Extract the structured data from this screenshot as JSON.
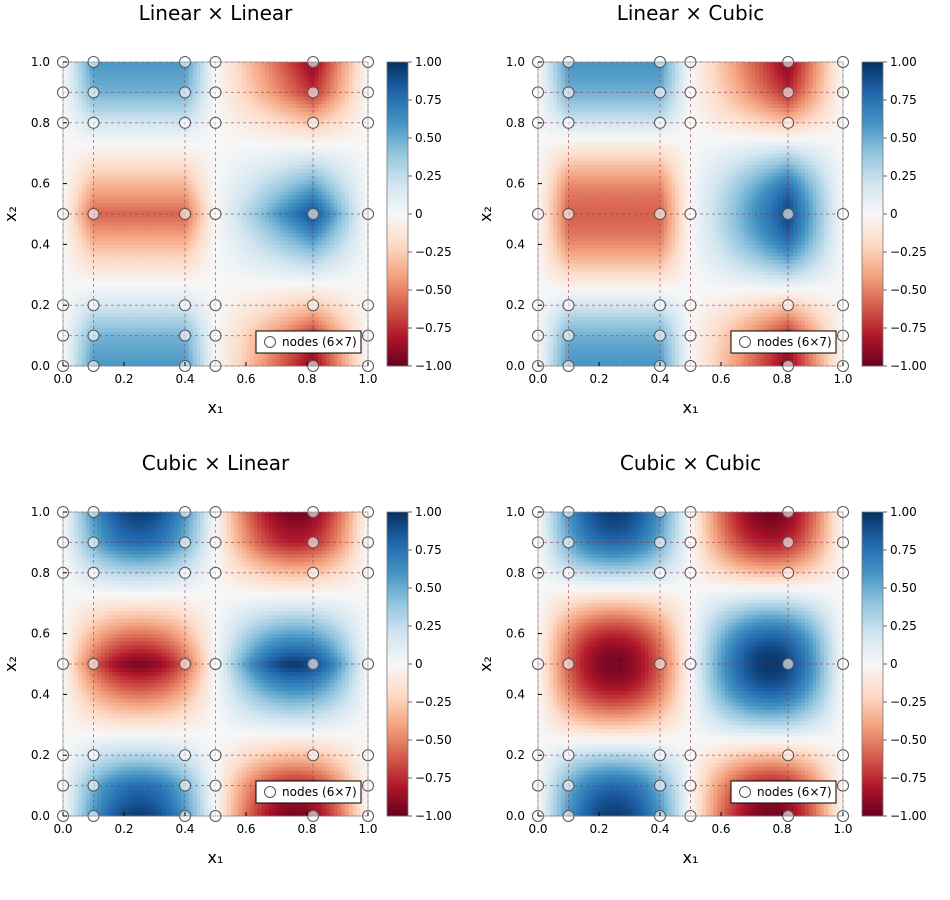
{
  "chart_data": [
    {
      "type": "heatmap",
      "title": "Linear × Linear",
      "method_x1": "linear",
      "method_x2": "linear",
      "xlabel": "x₁",
      "ylabel": "x₂"
    },
    {
      "type": "heatmap",
      "title": "Linear × Cubic",
      "method_x1": "linear",
      "method_x2": "cubic",
      "xlabel": "x₁",
      "ylabel": "x₂"
    },
    {
      "type": "heatmap",
      "title": "Cubic × Linear",
      "method_x1": "cubic",
      "method_x2": "linear",
      "xlabel": "x₁",
      "ylabel": "x₂"
    },
    {
      "type": "heatmap",
      "title": "Cubic × Cubic",
      "method_x1": "cubic",
      "method_x2": "cubic",
      "xlabel": "x₁",
      "ylabel": "x₂"
    }
  ],
  "shared": {
    "xlim": [
      0,
      1
    ],
    "ylim": [
      0,
      1
    ],
    "xticks": [
      "0.0",
      "0.2",
      "0.4",
      "0.6",
      "0.8",
      "1.0"
    ],
    "yticks": [
      "0.0",
      "0.2",
      "0.4",
      "0.6",
      "0.8",
      "1.0"
    ],
    "colorbar": {
      "range": [
        -1,
        1
      ],
      "colormap": "RdBu",
      "ticks": [
        "1.00",
        "0.75",
        "0.50",
        "0.25",
        "0",
        "−0.25",
        "−0.50",
        "−0.75",
        "−1.00"
      ]
    },
    "legend": {
      "label": "nodes (6×7)",
      "position": "bottom-right"
    },
    "nodes_x1": [
      0,
      0.1,
      0.4,
      0.5,
      0.82,
      1.0
    ],
    "nodes_x2": [
      0,
      0.1,
      0.2,
      0.5,
      0.8,
      0.9,
      1.0
    ],
    "node_values": [
      [
        0,
        0,
        0,
        0,
        0,
        0,
        0
      ],
      [
        0.588,
        0.476,
        0.182,
        -0.588,
        0.182,
        0.476,
        0.588
      ],
      [
        0.588,
        0.476,
        0.182,
        -0.588,
        0.182,
        0.476,
        0.588
      ],
      [
        0,
        0,
        0,
        0,
        0,
        0,
        0
      ],
      [
        -0.905,
        -0.732,
        -0.28,
        0.905,
        -0.28,
        -0.732,
        -0.905
      ],
      [
        0,
        0,
        0,
        0,
        0,
        0,
        0
      ]
    ],
    "grid": true
  }
}
